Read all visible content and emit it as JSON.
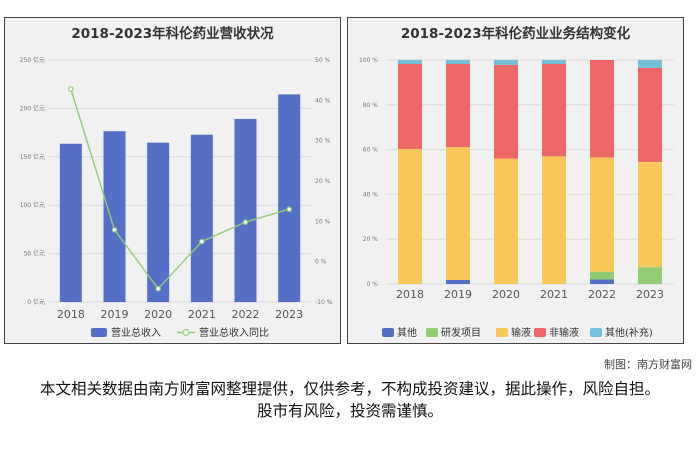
{
  "charts": {
    "left": {
      "title": "2018-2023年科伦药业营收状况"
    },
    "right": {
      "title": "2018-2023年科伦药业业务结构变化"
    }
  },
  "footer": {
    "credit": "制图：南方财富网",
    "disclaimer": "本文相关数据由南方财富网整理提供，仅供参考，不构成投资建议，据此操作，风险自担。股市有风险，投资需谨慎。"
  },
  "chart_data": [
    {
      "type": "bar",
      "title": "2018-2023年科伦药业营收状况",
      "categories": [
        "2018",
        "2019",
        "2020",
        "2021",
        "2022",
        "2023"
      ],
      "y_left": {
        "range": [
          0,
          250
        ],
        "ticks": [
          0,
          50,
          100,
          150,
          200,
          250
        ],
        "tick_labels": [
          "0 亿元",
          "50 亿元",
          "100 亿元",
          "150 亿元",
          "200 亿元",
          "250 亿元"
        ]
      },
      "y_right": {
        "range": [
          -10,
          50
        ],
        "ticks": [
          -10,
          0,
          10,
          20,
          30,
          40,
          50
        ],
        "tick_labels": [
          "-10 %",
          "0 %",
          "10 %",
          "20 %",
          "30 %",
          "40 %",
          "50 %"
        ]
      },
      "series": [
        {
          "name": "营业总收入",
          "kind": "bar",
          "axis": "left",
          "color": "#5470c6",
          "values": [
            163.5,
            176.4,
            164.6,
            172.8,
            189.1,
            214.5
          ]
        },
        {
          "name": "营业总收入同比",
          "kind": "line",
          "axis": "right",
          "color": "#91cc75",
          "values": [
            42.8,
            7.9,
            -6.7,
            5.0,
            9.8,
            13.0
          ]
        }
      ],
      "legend_position": "bottom"
    },
    {
      "type": "bar",
      "stacked": true,
      "title": "2018-2023年科伦药业业务结构变化",
      "categories": [
        "2018",
        "2019",
        "2020",
        "2021",
        "2022",
        "2023"
      ],
      "y": {
        "range": [
          0,
          100
        ],
        "ticks": [
          0,
          20,
          40,
          60,
          80,
          100
        ],
        "tick_labels": [
          "0 %",
          "20 %",
          "40 %",
          "60 %",
          "80 %",
          "100 %"
        ]
      },
      "series": [
        {
          "name": "其他",
          "color": "#5470c6",
          "values": [
            0,
            1.8,
            0,
            0,
            2,
            0
          ]
        },
        {
          "name": "研发项目",
          "color": "#91cc75",
          "values": [
            0,
            0,
            0,
            0,
            3.5,
            7.5
          ]
        },
        {
          "name": "输液",
          "color": "#fac858",
          "values": [
            60.3,
            59.3,
            56,
            57,
            51,
            47
          ]
        },
        {
          "name": "非输液",
          "color": "#ee6666",
          "values": [
            37.9,
            37.1,
            41.8,
            41.2,
            43.5,
            42
          ]
        },
        {
          "name": "其他(补充)",
          "color": "#73c0de",
          "values": [
            1.8,
            1.8,
            2.2,
            1.8,
            0,
            3.5
          ]
        }
      ],
      "legend_position": "bottom"
    }
  ]
}
